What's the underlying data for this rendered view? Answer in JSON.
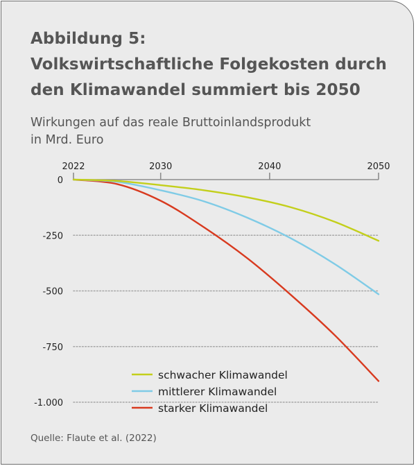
{
  "figure": {
    "title_lines": [
      "Abbildung 5:",
      "Volkswirtschaftliche Folgekosten durch",
      "den Klimawandel summiert bis 2050"
    ],
    "subtitle_lines": [
      "Wirkungen auf das reale Bruttoinlandsprodukt",
      "in Mrd. Euro"
    ],
    "source": "Quelle: Flaute et al. (2022)"
  },
  "colors": {
    "background": "#ebebeb",
    "axis": "#8c8c8c",
    "grid": "#a6a6a6"
  },
  "chart_data": {
    "type": "line",
    "x_axis_position": "top",
    "xlim": [
      2022,
      2050
    ],
    "ylim": [
      -1000,
      0
    ],
    "x_ticks": [
      2022,
      2030,
      2040,
      2050
    ],
    "x_tick_labels": [
      "2022",
      "2030",
      "2040",
      "2050"
    ],
    "y_ticks": [
      0,
      -250,
      -500,
      -750,
      -1000
    ],
    "y_tick_labels": [
      "0",
      "-250",
      "-500",
      "-750",
      "-1.000"
    ],
    "grid": "horizontal dotted",
    "legend_position": "bottom-right",
    "x": [
      2022,
      2026,
      2030,
      2034,
      2038,
      2042,
      2046,
      2050
    ],
    "series": [
      {
        "name": "schwacher Klimawandel",
        "color": "#c3cf1b",
        "values": [
          0,
          -6,
          -25,
          -48,
          -80,
          -125,
          -190,
          -275
        ]
      },
      {
        "name": "mittlerer Klimawandel",
        "color": "#7fcbe6",
        "values": [
          0,
          -10,
          -48,
          -98,
          -172,
          -265,
          -380,
          -515
        ]
      },
      {
        "name": "starker Klimawandel",
        "color": "#d83a1f",
        "values": [
          0,
          -20,
          -95,
          -215,
          -355,
          -520,
          -700,
          -905
        ]
      }
    ]
  }
}
